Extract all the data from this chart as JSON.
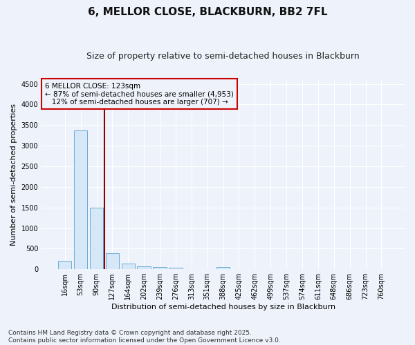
{
  "title": "6, MELLOR CLOSE, BLACKBURN, BB2 7FL",
  "subtitle": "Size of property relative to semi-detached houses in Blackburn",
  "xlabel": "Distribution of semi-detached houses by size in Blackburn",
  "ylabel": "Number of semi-detached properties",
  "categories": [
    "16sqm",
    "53sqm",
    "90sqm",
    "127sqm",
    "164sqm",
    "202sqm",
    "239sqm",
    "276sqm",
    "313sqm",
    "351sqm",
    "388sqm",
    "425sqm",
    "462sqm",
    "499sqm",
    "537sqm",
    "574sqm",
    "611sqm",
    "648sqm",
    "686sqm",
    "723sqm",
    "760sqm"
  ],
  "values": [
    200,
    3370,
    1500,
    390,
    140,
    75,
    55,
    35,
    5,
    0,
    55,
    0,
    0,
    0,
    0,
    0,
    0,
    0,
    0,
    0,
    0
  ],
  "bar_color": "#d6e8f7",
  "bar_edge_color": "#6aaed6",
  "property_line_color": "#8b0000",
  "ylim": [
    0,
    4600
  ],
  "yticks": [
    0,
    500,
    1000,
    1500,
    2000,
    2500,
    3000,
    3500,
    4000,
    4500
  ],
  "annotation_text": "6 MELLOR CLOSE: 123sqm\n← 87% of semi-detached houses are smaller (4,953)\n   12% of semi-detached houses are larger (707) →",
  "annotation_box_color": "#cc0000",
  "footnote": "Contains HM Land Registry data © Crown copyright and database right 2025.\nContains public sector information licensed under the Open Government Licence v3.0.",
  "background_color": "#eef2fa",
  "grid_color": "#ffffff",
  "title_fontsize": 11,
  "subtitle_fontsize": 9,
  "axis_label_fontsize": 8,
  "tick_fontsize": 7,
  "annotation_fontsize": 7.5,
  "footnote_fontsize": 6.5
}
